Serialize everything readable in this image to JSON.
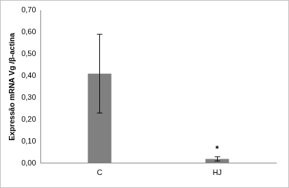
{
  "chart_data": {
    "type": "bar",
    "y_label": "Expressão mRNA Vg /β-actina",
    "categories": [
      "C",
      "HJ"
    ],
    "values": [
      0.41,
      0.02
    ],
    "errors": [
      0.18,
      0.01
    ],
    "color": "#808080",
    "ylim": [
      0,
      0.7
    ],
    "yticks": [
      {
        "value": 0,
        "label": "0,00"
      },
      {
        "value": 0.1,
        "label": "0,10"
      },
      {
        "value": 0.2,
        "label": "0,20"
      },
      {
        "value": 0.3,
        "label": "0,30"
      },
      {
        "value": 0.4,
        "label": "0,40"
      },
      {
        "value": 0.5,
        "label": "0,50"
      },
      {
        "value": 0.6,
        "label": "0,60"
      },
      {
        "value": 0.7,
        "label": "0,70"
      }
    ],
    "grid": false,
    "annotations": [
      {
        "category": "HJ",
        "text": "*"
      }
    ]
  }
}
